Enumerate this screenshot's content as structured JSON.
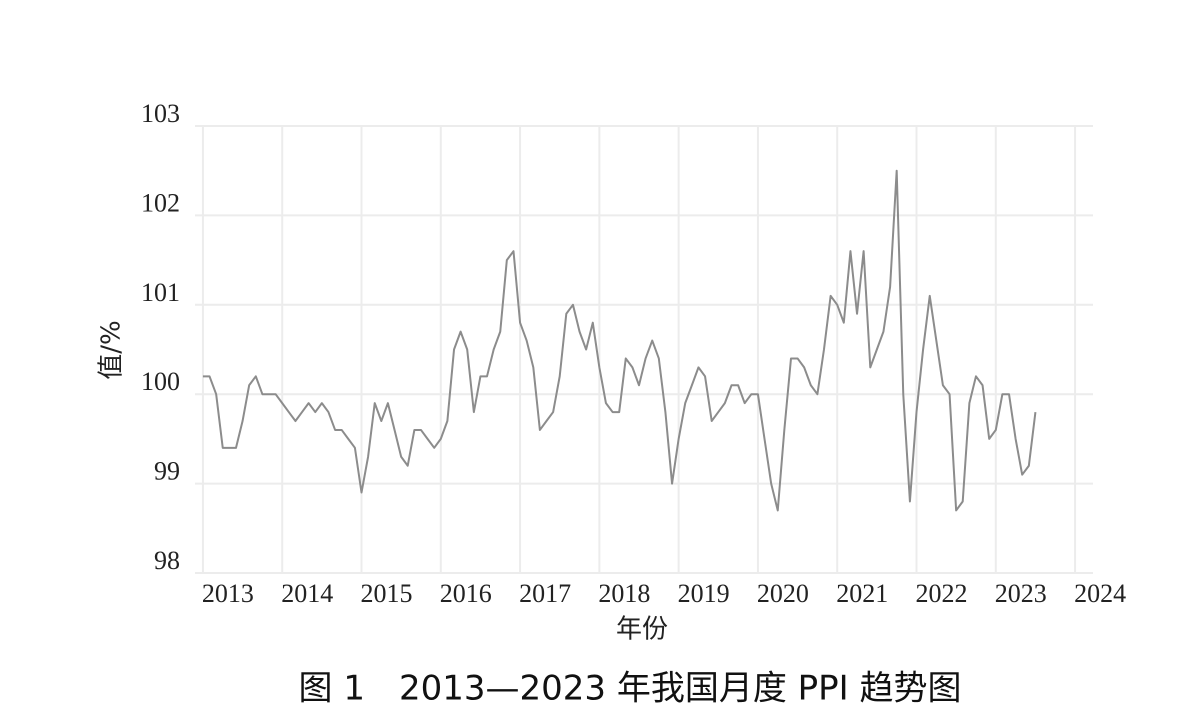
{
  "chart_data": {
    "type": "line",
    "title": "图 1　2013—2023 年我国月度 PPI 趋势图",
    "x_label": "年份",
    "y_label": "值/%",
    "xlim": [
      2012.9,
      2024.1
    ],
    "ylim": [
      98,
      103
    ],
    "xticks": [
      2013,
      2014,
      2015,
      2016,
      2017,
      2018,
      2019,
      2020,
      2021,
      2022,
      2023,
      2024
    ],
    "yticks": [
      98,
      99,
      100,
      101,
      102,
      103
    ],
    "grid": true,
    "x": [
      2013,
      2013.083,
      2013.167,
      2013.25,
      2013.333,
      2013.417,
      2013.5,
      2013.583,
      2013.667,
      2013.75,
      2013.833,
      2013.917,
      2014,
      2014.083,
      2014.167,
      2014.25,
      2014.333,
      2014.417,
      2014.5,
      2014.583,
      2014.667,
      2014.75,
      2014.833,
      2014.917,
      2015,
      2015.083,
      2015.167,
      2015.25,
      2015.333,
      2015.417,
      2015.5,
      2015.583,
      2015.667,
      2015.75,
      2015.833,
      2015.917,
      2016,
      2016.083,
      2016.167,
      2016.25,
      2016.333,
      2016.417,
      2016.5,
      2016.583,
      2016.667,
      2016.75,
      2016.833,
      2016.917,
      2017,
      2017.083,
      2017.167,
      2017.25,
      2017.333,
      2017.417,
      2017.5,
      2017.583,
      2017.667,
      2017.75,
      2017.833,
      2017.917,
      2018,
      2018.083,
      2018.167,
      2018.25,
      2018.333,
      2018.417,
      2018.5,
      2018.583,
      2018.667,
      2018.75,
      2018.833,
      2018.917,
      2019,
      2019.083,
      2019.167,
      2019.25,
      2019.333,
      2019.417,
      2019.5,
      2019.583,
      2019.667,
      2019.75,
      2019.833,
      2019.917,
      2020,
      2020.083,
      2020.167,
      2020.25,
      2020.333,
      2020.417,
      2020.5,
      2020.583,
      2020.667,
      2020.75,
      2020.833,
      2020.917,
      2021,
      2021.083,
      2021.167,
      2021.25,
      2021.333,
      2021.417,
      2021.5,
      2021.583,
      2021.667,
      2021.75,
      2021.833,
      2021.917,
      2022,
      2022.083,
      2022.167,
      2022.25,
      2022.333,
      2022.417,
      2022.5,
      2022.583,
      2022.667,
      2022.75,
      2022.833,
      2022.917,
      2023,
      2023.083,
      2023.167,
      2023.25,
      2023.333,
      2023.417,
      2023.5
    ],
    "series": [
      {
        "color": "#8c8c8c",
        "values": [
          100.2,
          100.2,
          100.0,
          99.4,
          99.4,
          99.4,
          99.7,
          100.1,
          100.2,
          100.0,
          100.0,
          100.0,
          99.9,
          99.8,
          99.7,
          99.8,
          99.9,
          99.8,
          99.9,
          99.8,
          99.6,
          99.6,
          99.5,
          99.4,
          98.9,
          99.3,
          99.9,
          99.7,
          99.9,
          99.6,
          99.3,
          99.2,
          99.6,
          99.6,
          99.5,
          99.4,
          99.5,
          99.7,
          100.5,
          100.7,
          100.5,
          99.8,
          100.2,
          100.2,
          100.5,
          100.7,
          101.5,
          101.6,
          100.8,
          100.6,
          100.3,
          99.6,
          99.7,
          99.8,
          100.2,
          100.9,
          101.0,
          100.7,
          100.5,
          100.8,
          100.3,
          99.9,
          99.8,
          99.8,
          100.4,
          100.3,
          100.1,
          100.4,
          100.6,
          100.4,
          99.8,
          99.0,
          99.5,
          99.9,
          100.1,
          100.3,
          100.2,
          99.7,
          99.8,
          99.9,
          100.1,
          100.1,
          99.9,
          100.0,
          100.0,
          99.5,
          99.0,
          98.7,
          99.6,
          100.4,
          100.4,
          100.3,
          100.1,
          100.0,
          100.5,
          101.1,
          101.0,
          100.8,
          101.6,
          100.9,
          101.6,
          100.3,
          100.5,
          100.7,
          101.2,
          102.5,
          100.0,
          98.8,
          99.8,
          100.5,
          101.1,
          100.6,
          100.1,
          100.0,
          98.7,
          98.8,
          99.9,
          100.2,
          100.1,
          99.5,
          99.6,
          100.0,
          100.0,
          99.5,
          99.1,
          99.2,
          99.8
        ]
      }
    ]
  }
}
